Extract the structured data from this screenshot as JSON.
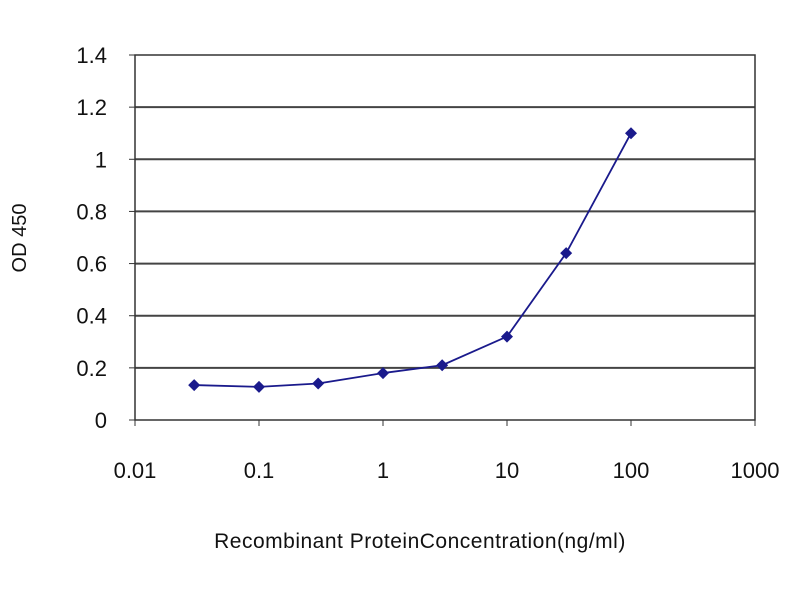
{
  "chart_data": {
    "type": "line",
    "title": "",
    "xlabel": "Recombinant ProteinConcentration(ng/ml)",
    "ylabel": "OD 450",
    "xscale": "log",
    "xlim": [
      0.01,
      1000
    ],
    "ylim": [
      0,
      1.4
    ],
    "xticks": [
      0.01,
      0.1,
      1,
      10,
      100,
      1000
    ],
    "xtick_labels": [
      "0.01",
      "0.1",
      "1",
      "10",
      "100",
      "1000"
    ],
    "yticks": [
      0,
      0.2,
      0.4,
      0.6,
      0.8,
      1,
      1.2,
      1.4
    ],
    "ytick_labels": [
      "0",
      "0.2",
      "0.4",
      "0.6",
      "0.8",
      "1",
      "1.2",
      "1.4"
    ],
    "grid": "horizontal",
    "legend": "none",
    "series": [
      {
        "x": [
          0.03,
          0.1,
          0.3,
          1,
          3,
          10,
          30,
          100
        ],
        "y": [
          0.134,
          0.127,
          0.14,
          0.18,
          0.21,
          0.32,
          0.64,
          1.1
        ],
        "color": "#1a1a8c",
        "marker": "diamond"
      }
    ]
  }
}
